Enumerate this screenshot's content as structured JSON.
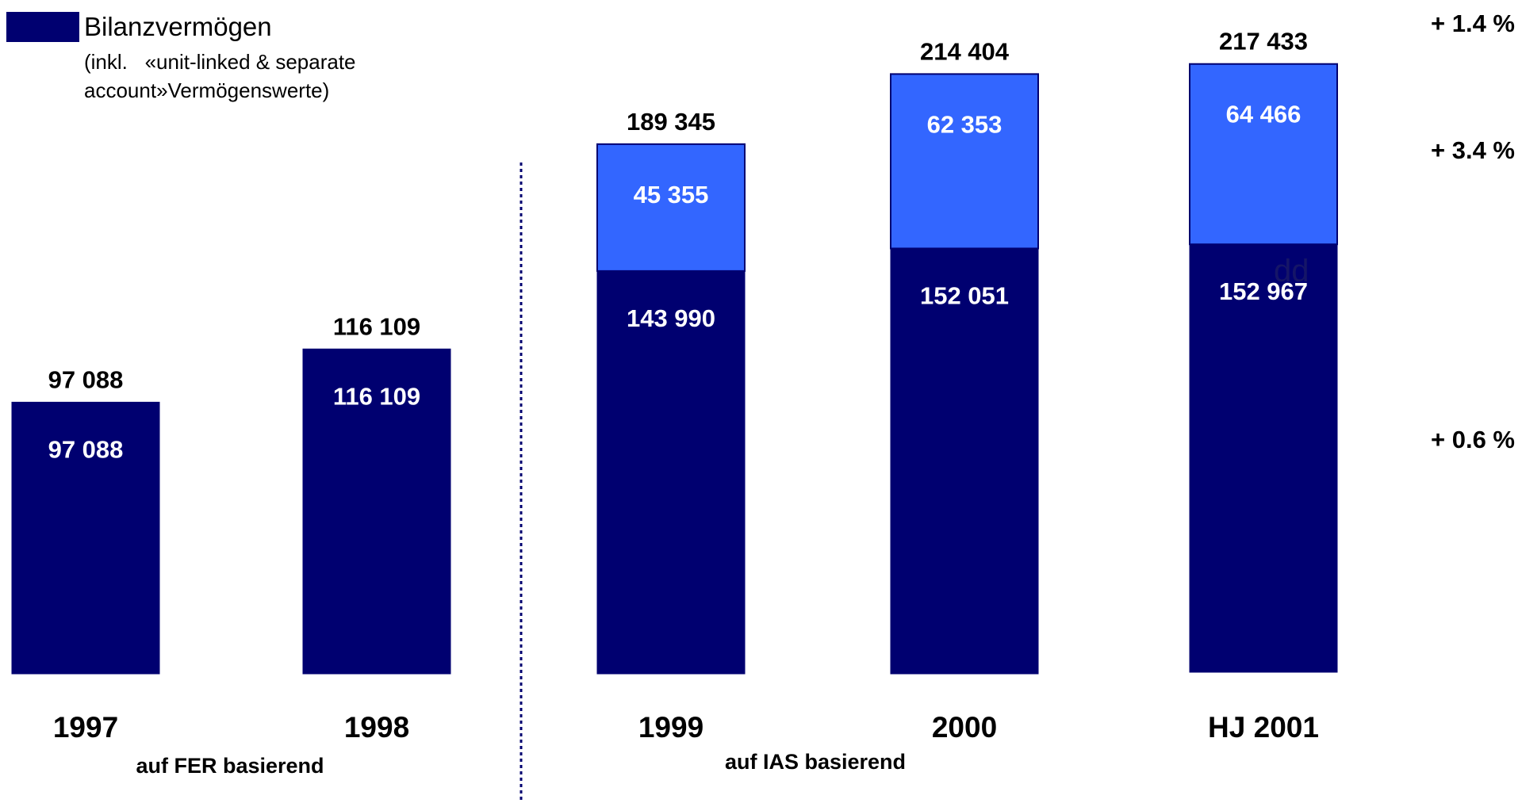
{
  "legend": {
    "title": "Bilanzvermögen",
    "note_line1": "(inkl.   «unit-linked & separate",
    "note_line2": "account»Vermögenswerte)",
    "swatch_color": "#000070"
  },
  "colors": {
    "base": "#000070",
    "top": "#3366FF",
    "text_dark": "#000000",
    "text_light": "#ffffff",
    "divider": "#000070"
  },
  "growth_labels": [
    "+ 1.4 %",
    "+ 3.4 %",
    "+ 0.6 %"
  ],
  "group_labels": [
    "auf FER basierend",
    "auf IAS basierend"
  ],
  "stray_mark": "dd",
  "chart_data": {
    "type": "bar",
    "stacked": true,
    "categories": [
      "1997",
      "1998",
      "1999",
      "2000",
      "HJ 2001"
    ],
    "series": [
      {
        "values": [
          97088,
          116109,
          143990,
          152051,
          152967
        ],
        "labels": [
          "97 088",
          "116 109",
          "143 990",
          "152 051",
          "152 967"
        ]
      },
      {
        "values": [
          0,
          0,
          45355,
          62353,
          64466
        ],
        "labels": [
          "",
          "",
          "45 355",
          "62 353",
          "64 466"
        ]
      }
    ],
    "totals": [
      97088,
      116109,
      189345,
      214404,
      217433
    ],
    "total_labels": [
      "97 088",
      "116 109",
      "189 345",
      "214 404",
      "217 433"
    ],
    "ylim": [
      0,
      225000
    ],
    "grid": false,
    "legend_position": "top-left",
    "divider_between": [
      "1998",
      "1999"
    ]
  }
}
